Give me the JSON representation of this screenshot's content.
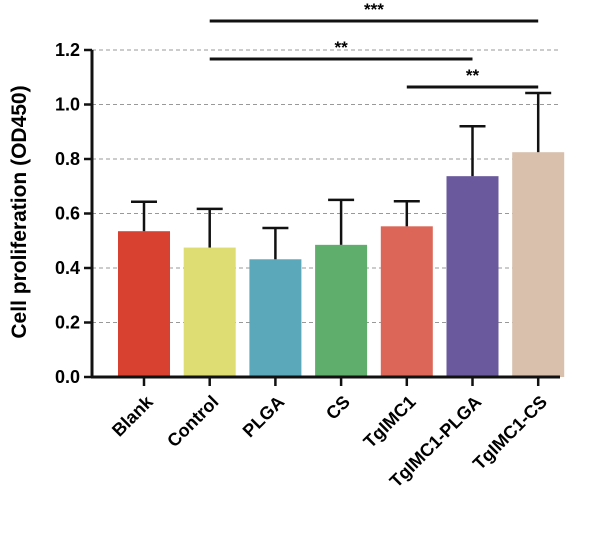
{
  "chart_data": {
    "type": "bar",
    "categories": [
      "Blank",
      "Control",
      "PLGA",
      "CS",
      "TgIMC1",
      "TgIMC1-PLGA",
      "TgIMC1-CS"
    ],
    "values": [
      0.535,
      0.475,
      0.432,
      0.485,
      0.553,
      0.737,
      0.825
    ],
    "errors": [
      0.108,
      0.142,
      0.115,
      0.165,
      0.092,
      0.183,
      0.217
    ],
    "colors": [
      "#d8402f",
      "#dedd74",
      "#5aa8ba",
      "#60ae6b",
      "#dc6758",
      "#6a5a9d",
      "#d8c0ad"
    ],
    "title": "",
    "xlabel": "",
    "ylabel": "Cell proliferation (OD450)",
    "ylim": [
      0,
      1.2
    ],
    "yticks": [
      "0.0",
      "0.2",
      "0.4",
      "0.6",
      "0.8",
      "1.0",
      "1.2"
    ],
    "ytick_values": [
      0,
      0.2,
      0.4,
      0.6,
      0.8,
      1.0,
      1.2
    ],
    "grid": "horizontal dashed",
    "significance": [
      {
        "from": "Control",
        "to": "TgIMC1-CS",
        "label": "***"
      },
      {
        "from": "Control",
        "to": "TgIMC1-PLGA",
        "label": "**"
      },
      {
        "from": "TgIMC1",
        "to": "TgIMC1-CS",
        "label": "**"
      }
    ]
  }
}
